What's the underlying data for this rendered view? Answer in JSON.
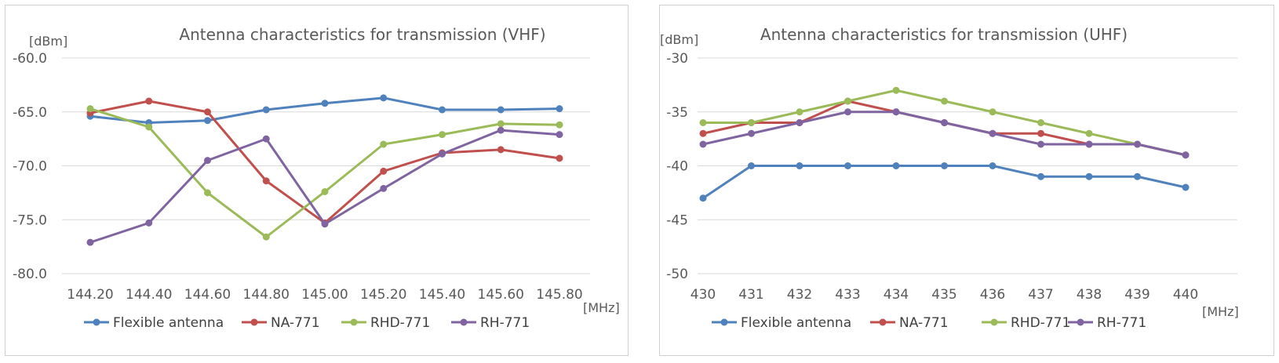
{
  "charts": [
    {
      "id": "vhf",
      "chart_data": {
        "type": "line",
        "title": "Antenna characteristics for transmission (VHF)",
        "ylabel": "[dBm]",
        "xlabel": "[MHz]",
        "categories": [
          "144.20",
          "144.40",
          "144.60",
          "144.80",
          "145.00",
          "145.20",
          "145.40",
          "145.60",
          "145.80"
        ],
        "ylim": [
          -80,
          -60
        ],
        "yticks": [
          -60,
          -65,
          -70,
          -75,
          -80
        ],
        "ytick_labels": [
          "-60.0",
          "-65.0",
          "-70.0",
          "-75.0",
          "-80.0"
        ],
        "grid": true,
        "legend_position": "bottom",
        "series": [
          {
            "name": "Flexible antenna",
            "color": "#4f81bd",
            "values": [
              -65.4,
              -66.0,
              -65.8,
              -64.8,
              -64.2,
              -63.7,
              -64.8,
              -64.8,
              -64.7
            ]
          },
          {
            "name": "NA-771",
            "color": "#c0504d",
            "values": [
              -65.1,
              -64.0,
              -65.0,
              -71.4,
              -75.3,
              -70.5,
              -68.8,
              -68.5,
              -69.3
            ]
          },
          {
            "name": "RHD-771",
            "color": "#9bbb59",
            "values": [
              -64.7,
              -66.4,
              -72.5,
              -76.6,
              -72.4,
              -68.0,
              -67.1,
              -66.1,
              -66.2
            ]
          },
          {
            "name": "RH-771",
            "color": "#8064a2",
            "values": [
              -77.1,
              -75.3,
              -69.5,
              -67.5,
              -75.4,
              -72.1,
              -68.9,
              -66.7,
              -67.1
            ]
          }
        ]
      }
    },
    {
      "id": "uhf",
      "chart_data": {
        "type": "line",
        "title": "Antenna characteristics for transmission (UHF)",
        "ylabel": "[dBm]",
        "xlabel": "[MHz]",
        "categories": [
          "430",
          "431",
          "432",
          "433",
          "434",
          "435",
          "436",
          "437",
          "438",
          "439",
          "440"
        ],
        "ylim": [
          -50,
          -30
        ],
        "yticks": [
          -30,
          -35,
          -40,
          -45,
          -50
        ],
        "ytick_labels": [
          "-30",
          "-35",
          "-40",
          "-45",
          "-50"
        ],
        "grid": true,
        "legend_position": "bottom",
        "series": [
          {
            "name": "Flexible antenna",
            "color": "#4f81bd",
            "values": [
              -43,
              -40,
              -40,
              -40,
              -40,
              -40,
              -40,
              -41,
              -41,
              -41,
              -42
            ]
          },
          {
            "name": "NA-771",
            "color": "#c0504d",
            "values": [
              -37,
              -36,
              -36,
              -34,
              -35,
              -36,
              -37,
              -37,
              -38,
              -38,
              -39
            ]
          },
          {
            "name": "RHD-771",
            "color": "#9bbb59",
            "values": [
              -36,
              -36,
              -35,
              -34,
              -33,
              -34,
              -35,
              -36,
              -37,
              -38,
              -39
            ]
          },
          {
            "name": "RH-771",
            "color": "#8064a2",
            "values": [
              -38,
              -37,
              -36,
              -35,
              -35,
              -36,
              -37,
              -38,
              -38,
              -38,
              -39
            ]
          }
        ]
      }
    }
  ]
}
